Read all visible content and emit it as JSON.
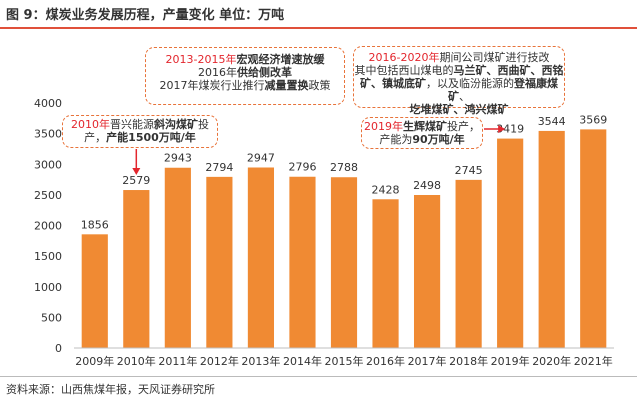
{
  "header": {
    "title": "图 9：煤炭业务发展历程，产量变化 单位：万吨"
  },
  "footer": {
    "source": "资料来源：山西焦煤年报，天风证券研究所"
  },
  "colors": {
    "bar": "#f08a33",
    "accent_red": "#e3262d",
    "dashed_border": "#e8733a",
    "title_rule": "#e0503a"
  },
  "chart_data": {
    "type": "bar",
    "title": "煤炭业务发展历程，产量变化",
    "unit": "万吨",
    "categories": [
      "2009年",
      "2010年",
      "2011年",
      "2012年",
      "2013年",
      "2014年",
      "2015年",
      "2016年",
      "2017年",
      "2018年",
      "2019年",
      "2020年",
      "2021年"
    ],
    "values": [
      1856,
      2579,
      2943,
      2794,
      2947,
      2796,
      2788,
      2428,
      2498,
      2745,
      3419,
      3544,
      3569
    ],
    "ylim": [
      0,
      4000
    ],
    "yticks": [
      0,
      500,
      1000,
      1500,
      2000,
      2500,
      3000,
      3500,
      4000
    ],
    "grid": false,
    "legend": "none"
  },
  "annotations": {
    "a2010": {
      "years": "2010年",
      "l1a": "晋兴能源",
      "l1b": "斜沟煤矿",
      "l1c": "投",
      "l2a": "产，",
      "l2b": "产能1500万吨/年"
    },
    "a2013": {
      "years": "2013-2015年",
      "l1": "宏观经济增速放缓",
      "l2a": "2016年",
      "l2b": "供给侧改革",
      "l3a": "2017年煤炭行业推行",
      "l3b": "减量置换",
      "l3c": "政策"
    },
    "a2016": {
      "years": "2016-2020年",
      "l1": "期间公司煤矿进行技改",
      "l2a": "其中包括西山煤电的",
      "l2b": "马兰矿、西曲矿、西铭",
      "l3a": "矿、镇城底矿",
      "l3b": "，以及临汾能源的",
      "l3c": "登福康煤矿",
      "l3d": "、",
      "l4": "圪堆煤矿、鸿兴煤矿"
    },
    "a2019": {
      "years": "2019年",
      "l1a": "生辉煤矿",
      "l1b": "投产，",
      "l2a": "产能为",
      "l2b": "90万吨/年"
    }
  }
}
